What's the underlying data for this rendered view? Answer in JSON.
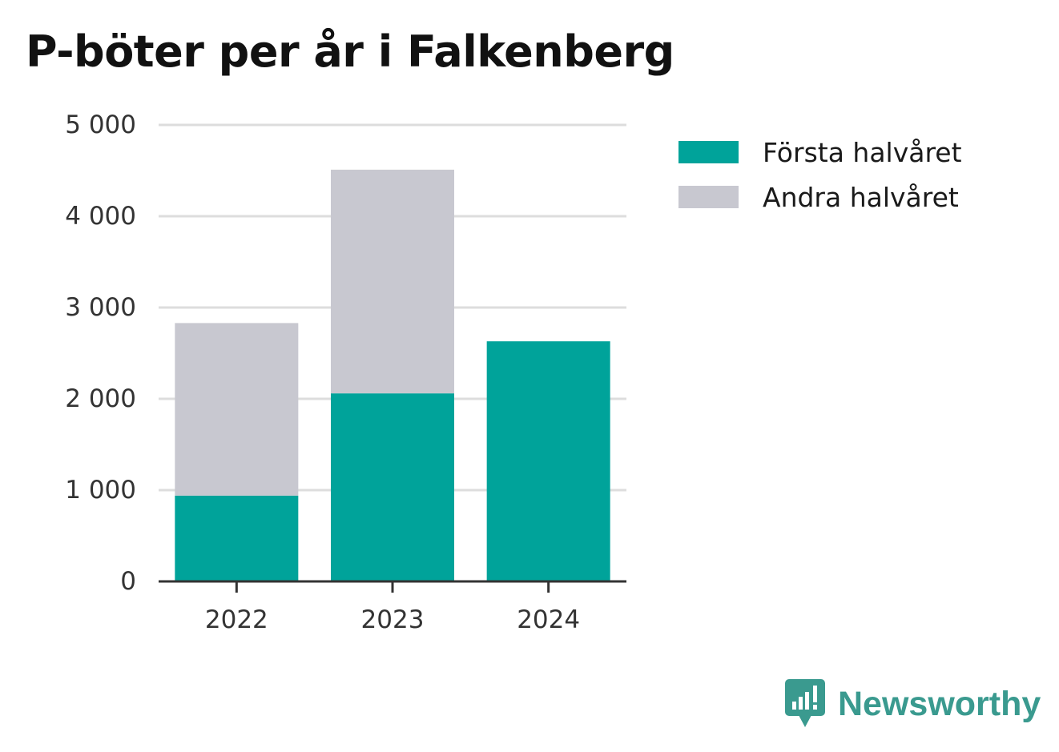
{
  "title": "P-böter per år i Falkenberg",
  "brand": {
    "name": "Newsworthy",
    "logo_icon": "chart-speech-bubble-icon",
    "color": "#3a9a8f"
  },
  "chart_data": {
    "type": "bar",
    "stacked": true,
    "categories": [
      "2022",
      "2023",
      "2024"
    ],
    "series": [
      {
        "name": "Första halvåret",
        "color": "#00a39a",
        "values": [
          940,
          2060,
          2630
        ]
      },
      {
        "name": "Andra halvåret",
        "color": "#c8c8d0",
        "values": [
          1890,
          2450,
          0
        ]
      }
    ],
    "ylim": [
      0,
      5000
    ],
    "yticks": [
      0,
      1000,
      2000,
      3000,
      4000,
      5000
    ],
    "ytick_labels": [
      "0",
      "1 000",
      "2 000",
      "3 000",
      "4 000",
      "5 000"
    ],
    "xlabel": "",
    "ylabel": "",
    "grid": true,
    "legend_position": "right"
  }
}
